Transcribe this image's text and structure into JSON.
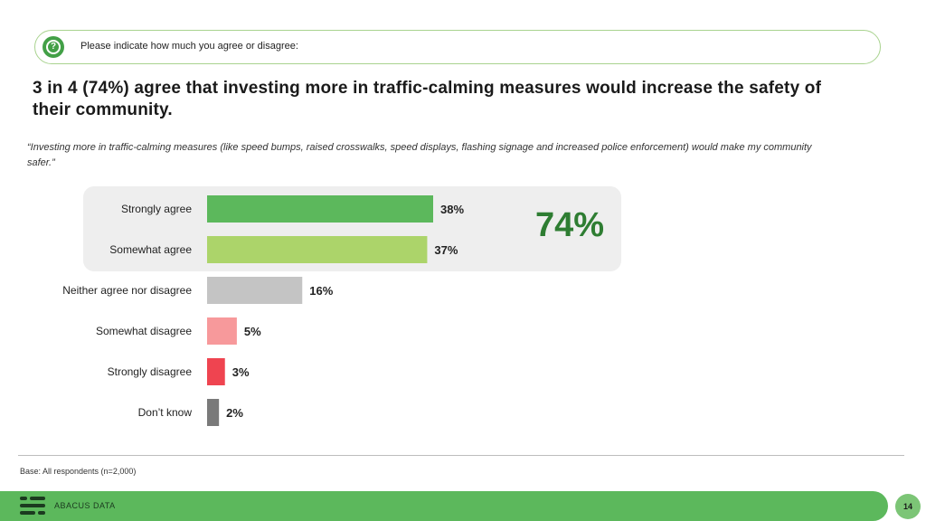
{
  "question": {
    "icon": "question-icon",
    "text": "Please indicate how much you agree or disagree:"
  },
  "headline": "3 in 4 (74%) agree that investing more in traffic-calming measures would increase the safety of their community.",
  "quote": "“Investing more in traffic-calming measures (like speed bumps, raised crosswalks, speed displays, flashing signage and increased police enforcement) would make my community safer.”",
  "total_agree": "74%",
  "base": "Base: All respondents (n=2,000)",
  "footer": {
    "brand": "ABACUS DATA",
    "page": "14"
  },
  "chart_data": {
    "type": "bar",
    "orientation": "horizontal",
    "categories": [
      "Strongly agree",
      "Somewhat agree",
      "Neither agree nor disagree",
      "Somewhat disagree",
      "Strongly disagree",
      "Don’t know"
    ],
    "values": [
      38,
      37,
      16,
      5,
      3,
      2
    ],
    "value_labels": [
      "38%",
      "37%",
      "16%",
      "5%",
      "3%",
      "2%"
    ],
    "colors": [
      "#5cb85c",
      "#acd46a",
      "#c4c4c4",
      "#f7999b",
      "#ef4450",
      "#7a7a7a"
    ],
    "xlim": [
      0,
      38
    ],
    "grid": false,
    "legend": "none"
  }
}
